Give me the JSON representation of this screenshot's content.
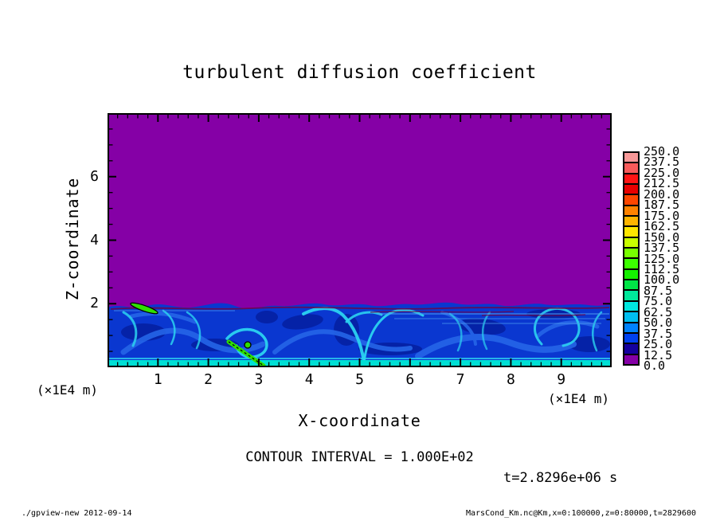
{
  "chart_data": {
    "type": "heatmap",
    "title": "turbulent diffusion coefficient",
    "xlabel": "X-coordinate",
    "ylabel": "Z-coordinate",
    "x_units_label": "(×1E4 m)",
    "y_units_label": "(×1E4 m)",
    "xlim": [
      0,
      10
    ],
    "zlim": [
      0,
      8
    ],
    "x_ticks": [
      1,
      2,
      3,
      4,
      5,
      6,
      7,
      8,
      9
    ],
    "x_minor_step": 0.2,
    "z_ticks": [
      2,
      4,
      6
    ],
    "z_minor_step": 0.5,
    "contour_interval_label": "CONTOUR INTERVAL = 1.000E+02",
    "time_label": "t=2.8296e+06 s",
    "colorbar": {
      "labels": [
        "250.0",
        "237.5",
        "225.0",
        "212.5",
        "200.0",
        "187.5",
        "175.0",
        "162.5",
        "150.0",
        "137.5",
        "125.0",
        "112.5",
        "100.0",
        "87.5",
        "75.0",
        "62.5",
        "50.0",
        "37.5",
        "25.0",
        "12.5",
        "0.0"
      ],
      "colors": [
        "#F89898",
        "#F85A5A",
        "#FF1414",
        "#E80000",
        "#FF4600",
        "#FF8200",
        "#FFB400",
        "#FFE600",
        "#C8FF00",
        "#78FF00",
        "#3CFF00",
        "#14F000",
        "#00E646",
        "#00E89B",
        "#00E8E0",
        "#00BEF0",
        "#0082FF",
        "#0041F0",
        "#14009E",
        "#8500A6"
      ]
    },
    "field": {
      "description": "Uniform near-zero diffusion (purple, 0-12.5) above z=2×1E4 m; turbulent boundary layer (blues/cyans, ~12.5-100, isolated green spots >100) below z=2, with cyan layer at the surface",
      "interface_z": 2.0
    }
  },
  "palette": {
    "purple_field": "#8500A6",
    "base_blue": "#0A37D0",
    "deep_blue": "#051FA0",
    "mid_blue": "#2565E8",
    "light_blue": "#4D9BF0",
    "cyan": "#2BD2F0",
    "teal": "#00DFD4",
    "green": "#2FE000",
    "maroon": "#77003C",
    "black": "#000000"
  },
  "footer": {
    "left": "./gpview-new  2012-09-14",
    "right": "MarsCond_Km.nc@Km,x=0:100000,z=0:80000,t=2829600"
  }
}
